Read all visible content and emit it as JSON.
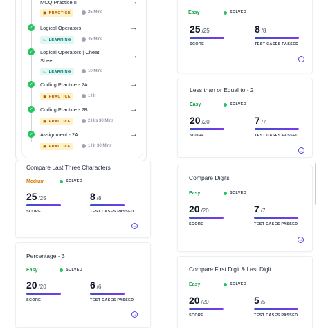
{
  "timeline": {
    "items": [
      {
        "title": "MCQ Practice II",
        "badge": "PRACTICE",
        "duration": "25 Mins"
      },
      {
        "title": "Logical Operators",
        "badge": "LEARNING",
        "duration": "45 Mins"
      },
      {
        "title": "Logical Operators | Cheat Sheet",
        "badge": "LEARNING",
        "duration": "10 Mins"
      },
      {
        "title": "Coding Practice - 2A",
        "badge": "PRACTICE",
        "duration": "1 Hr"
      },
      {
        "title": "Coding Practice - 2B",
        "badge": "PRACTICE",
        "duration": "2 Hrs 30 Mins"
      },
      {
        "title": "Assignment - 2A",
        "badge": "PRACTICE",
        "duration": "1 Hr 30 Mins"
      }
    ]
  },
  "problems": [
    {
      "title": "",
      "difficulty": "Easy",
      "status": "SOLVED",
      "score": "25",
      "score_max": "/25",
      "tests": "8",
      "tests_max": "/8",
      "score_label": "SCORE",
      "tests_label": "TEST CASES PASSED"
    },
    {
      "title": "Less than or Equal to - 2",
      "difficulty": "Easy",
      "status": "SOLVED",
      "score": "20",
      "score_max": "/20",
      "tests": "7",
      "tests_max": "/7",
      "score_label": "SCORE",
      "tests_label": "TEST CASES PASSED"
    },
    {
      "title": "Compare Last Three Characters",
      "difficulty": "Medium",
      "status": "SOLVED",
      "score": "25",
      "score_max": "/25",
      "tests": "8",
      "tests_max": "/8",
      "score_label": "SCORE",
      "tests_label": "TEST CASES PASSED"
    },
    {
      "title": "Compare Digits",
      "difficulty": "Easy",
      "status": "SOLVED",
      "score": "20",
      "score_max": "/20",
      "tests": "7",
      "tests_max": "/7",
      "score_label": "SCORE",
      "tests_label": "TEST CASES PASSED"
    },
    {
      "title": "Percentage - 3",
      "difficulty": "Easy",
      "status": "SOLVED",
      "score": "20",
      "score_max": "/20",
      "tests": "6",
      "tests_max": "/6",
      "score_label": "SCORE",
      "tests_label": "TEST CASES PASSED"
    },
    {
      "title": "Compare First Digit & Last Digit",
      "difficulty": "Easy",
      "status": "SOLVED",
      "score": "20",
      "score_max": "/20",
      "tests": "5",
      "tests_max": "/5",
      "score_label": "SCORE",
      "tests_label": "TEST CASES PASSED"
    }
  ],
  "colors": {
    "accent": "#4f46e5",
    "easy": "#16a34a",
    "medium": "#d97706",
    "solved_dot": "#22c55e"
  }
}
